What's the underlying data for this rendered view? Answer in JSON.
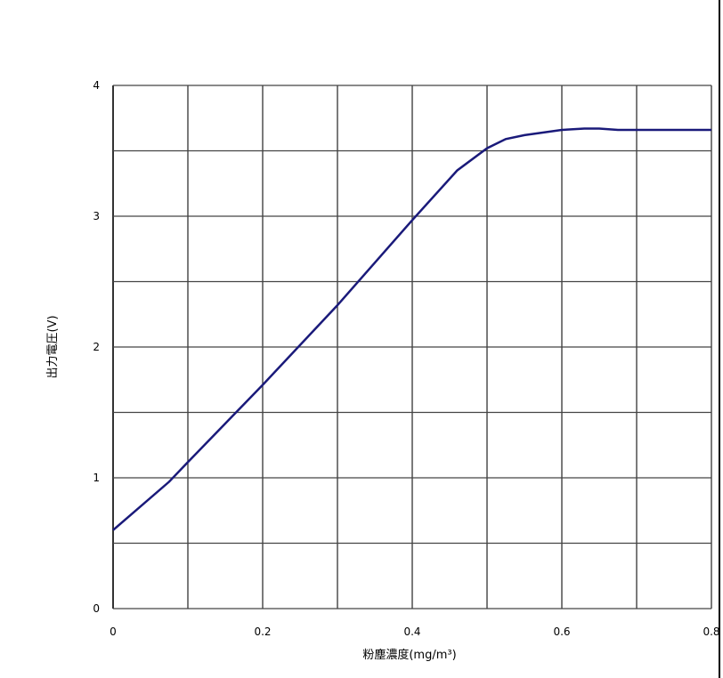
{
  "chart_data": {
    "type": "line",
    "title": "",
    "xlabel": "粉塵濃度(mg/m³)",
    "ylabel": "出力電圧(V)",
    "xlim": [
      0,
      0.8
    ],
    "ylim": [
      0,
      4
    ],
    "grid": true,
    "x_ticks": [
      "0",
      "0.2",
      "0.4",
      "0.6",
      "0.8"
    ],
    "y_ticks": [
      "0",
      "1",
      "2",
      "3",
      "4"
    ],
    "line_color": "#1a1a7a",
    "series": [
      {
        "x": [
          0,
          0.075,
          0.1,
          0.2,
          0.3,
          0.4,
          0.46,
          0.5,
          0.525,
          0.55,
          0.6,
          0.63,
          0.65,
          0.675,
          0.7,
          0.8
        ],
        "y": [
          0.6,
          0.97,
          1.12,
          1.71,
          2.32,
          2.97,
          3.35,
          3.52,
          3.59,
          3.62,
          3.66,
          3.67,
          3.67,
          3.66,
          3.66,
          3.66
        ]
      }
    ]
  }
}
